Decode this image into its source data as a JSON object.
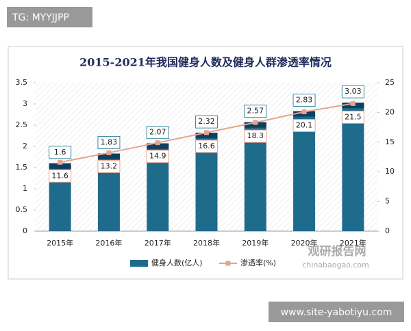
{
  "header_tag": "TG: MYYJJPP",
  "footer_url": "www.site-yabotiyu.com",
  "watermark": {
    "name": "观研报告网",
    "domain": "chinabaogao.com"
  },
  "chart_data": {
    "type": "bar",
    "title": "2015-2021年我国健身人数及健身人群渗透率情况",
    "categories": [
      "2015年",
      "2016年",
      "2017年",
      "2018年",
      "2019年",
      "2020年",
      "2021年"
    ],
    "series": [
      {
        "name": "健身人数(亿人)",
        "color": "#1f6b8c",
        "values": [
          1.6,
          1.83,
          2.07,
          2.32,
          2.57,
          2.83,
          3.03
        ]
      },
      {
        "name": "渗透率(%)",
        "color": "#e8a38c",
        "type": "line",
        "axis": "y2",
        "values": [
          11.6,
          13.2,
          14.9,
          16.6,
          18.3,
          20.1,
          21.5
        ]
      }
    ],
    "ylim": [
      0,
      3.5
    ],
    "yticks": [
      0,
      0.5,
      1,
      1.5,
      2,
      2.5,
      3,
      3.5
    ],
    "y2lim": [
      0,
      25
    ],
    "y2ticks": [
      0,
      5,
      10,
      15,
      20,
      25
    ],
    "legend": "bottom"
  }
}
